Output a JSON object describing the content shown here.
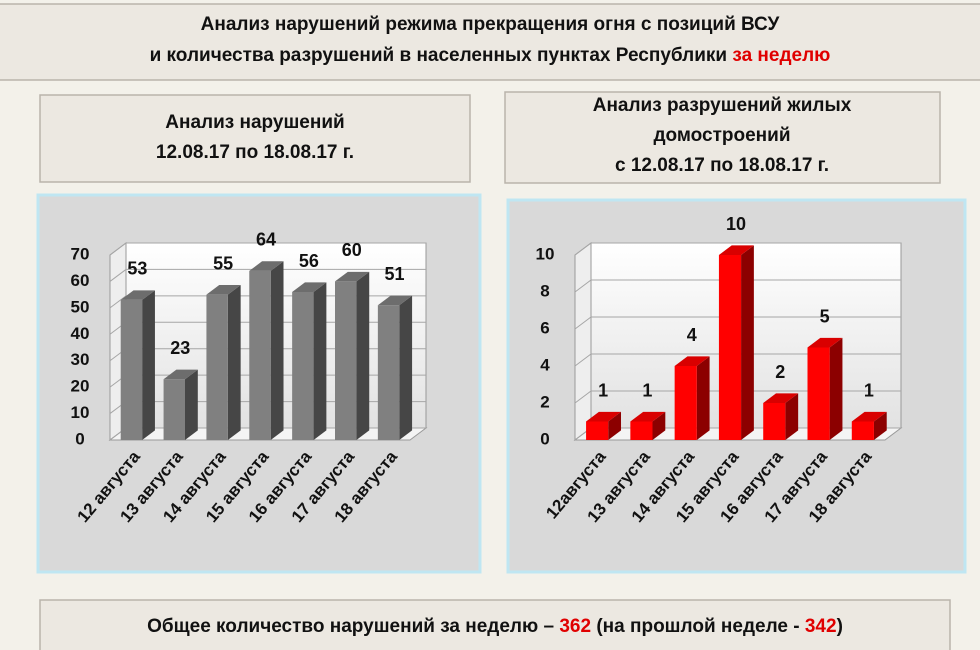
{
  "header": {
    "line1": "Анализ нарушений режима прекращения огня с позиций ВСУ",
    "line2": "и количества разрушений в населенных пунктах Республики",
    "highlight": "за неделю"
  },
  "chart_data": [
    {
      "type": "bar3d",
      "title": [
        "Анализ нарушений",
        "12.08.17 по 18.08.17 г."
      ],
      "categories": [
        "12 августа",
        "13 августа",
        "14 августа",
        "15 августа",
        "16 августа",
        "17 августа",
        "18 августа"
      ],
      "values": [
        53,
        23,
        55,
        64,
        56,
        60,
        51
      ],
      "color": "#808080",
      "ylim": [
        0,
        70
      ],
      "yticks": [
        0,
        10,
        20,
        30,
        40,
        50,
        60,
        70
      ],
      "grid": true
    },
    {
      "type": "bar3d",
      "title": [
        "Анализ разрушений жилых",
        "домостроений",
        "с 12.08.17 по 18.08.17 г."
      ],
      "categories": [
        "12августа",
        "13 августа",
        "14 августа",
        "15 августа",
        "16 августа",
        "17 августа",
        "18 августа"
      ],
      "values": [
        1,
        1,
        4,
        10,
        2,
        5,
        1
      ],
      "color": "#ff0000",
      "ylim": [
        0,
        10
      ],
      "yticks": [
        0,
        2,
        4,
        6,
        8,
        10
      ],
      "grid": true
    }
  ],
  "summary": {
    "text1": "Общее количество нарушений за неделю –",
    "current": 362,
    "text2": "(на прошлой неделе -",
    "previous": 342,
    "text3": ")"
  }
}
